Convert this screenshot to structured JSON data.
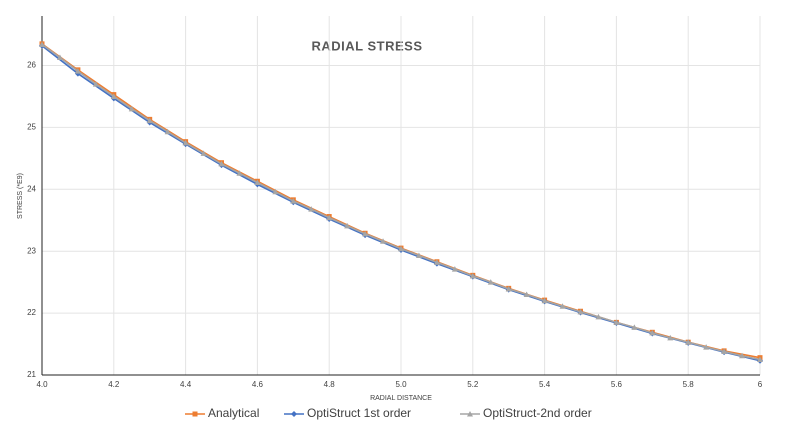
{
  "chart_data": {
    "type": "line",
    "title": "RADIAL STRESS",
    "xlabel": "RADIAL DISTANCE",
    "ylabel": "STRESS (*E9)",
    "xlim": [
      4,
      6
    ],
    "ylim": [
      21,
      26.8
    ],
    "xticks": [
      {
        "value": 4,
        "label": "4.0"
      },
      4.2,
      4.4,
      4.6,
      4.8,
      {
        "value": 5,
        "label": "5.0"
      },
      5.2,
      5.4,
      5.6,
      5.8,
      6
    ],
    "yticks": [
      21,
      22,
      23,
      24,
      25,
      26
    ],
    "grid": true,
    "series": [
      {
        "name": "Analytical",
        "color": "#ed7d31",
        "marker": "square",
        "x": [
          4.0,
          4.1,
          4.2,
          4.3,
          4.4,
          4.5,
          4.6,
          4.7,
          4.8,
          4.9,
          5.0,
          5.1,
          5.2,
          5.3,
          5.4,
          5.5,
          5.6,
          5.7,
          5.8,
          5.9,
          6.0
        ],
        "values": [
          26.35,
          25.93,
          25.53,
          25.13,
          24.77,
          24.43,
          24.13,
          23.83,
          23.56,
          23.29,
          23.05,
          22.83,
          22.61,
          22.4,
          22.21,
          22.03,
          21.85,
          21.69,
          21.53,
          21.39,
          21.28
        ]
      },
      {
        "name": "OptiStruct 1st order",
        "color": "#4472c4",
        "marker": "diamond",
        "x": [
          4.0,
          4.1,
          4.2,
          4.3,
          4.4,
          4.5,
          4.6,
          4.7,
          4.8,
          4.9,
          5.0,
          5.1,
          5.2,
          5.3,
          5.4,
          5.5,
          5.6,
          5.7,
          5.8,
          5.9,
          6.0
        ],
        "values": [
          26.32,
          25.87,
          25.47,
          25.08,
          24.73,
          24.39,
          24.08,
          23.79,
          23.52,
          23.26,
          23.02,
          22.8,
          22.59,
          22.38,
          22.19,
          22.01,
          21.84,
          21.67,
          21.52,
          21.37,
          21.23
        ]
      },
      {
        "name": "OptiStruct-2nd order",
        "color": "#a5a5a5",
        "marker": "triangle",
        "x": [
          4.0,
          4.05,
          4.1,
          4.15,
          4.2,
          4.25,
          4.3,
          4.35,
          4.4,
          4.45,
          4.5,
          4.55,
          4.6,
          4.65,
          4.7,
          4.75,
          4.8,
          4.85,
          4.9,
          4.95,
          5.0,
          5.05,
          5.1,
          5.15,
          5.2,
          5.25,
          5.3,
          5.35,
          5.4,
          5.45,
          5.5,
          5.55,
          5.6,
          5.65,
          5.7,
          5.75,
          5.8,
          5.85,
          5.9,
          5.95,
          6.0
        ],
        "values": [
          26.34,
          26.13,
          25.91,
          25.7,
          25.5,
          25.3,
          25.11,
          24.93,
          24.75,
          24.58,
          24.41,
          24.26,
          24.11,
          23.96,
          23.81,
          23.68,
          23.54,
          23.41,
          23.28,
          23.16,
          23.04,
          22.93,
          22.82,
          22.71,
          22.6,
          22.5,
          22.39,
          22.3,
          22.2,
          22.11,
          22.02,
          21.94,
          21.85,
          21.77,
          21.68,
          21.6,
          21.53,
          21.45,
          21.38,
          21.31,
          21.25
        ]
      }
    ]
  }
}
